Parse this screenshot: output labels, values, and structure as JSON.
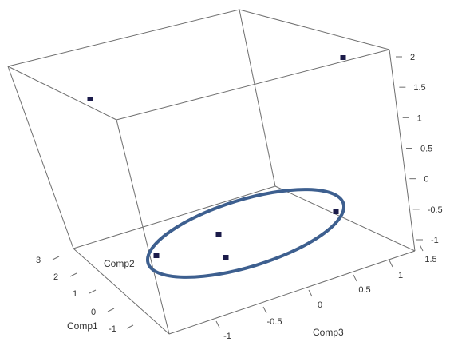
{
  "chart_data": {
    "type": "scatter",
    "title": "",
    "axes": {
      "z": {
        "ticks": [
          "-1",
          "-0.5",
          "0",
          "0.5",
          "1",
          "1.5",
          "2"
        ]
      },
      "comp3": {
        "label": "Comp3",
        "ticks": [
          "-1",
          "-0.5",
          "0",
          "0.5",
          "1",
          "1.5"
        ]
      },
      "comp2": {
        "label": "Comp2"
      },
      "comp1": {
        "label": "Comp1",
        "ticks": [
          "-1",
          "0",
          "1",
          "2",
          "3"
        ]
      }
    },
    "points_count": 6,
    "annotation": {
      "shape": "ellipse",
      "color": "#3d5f8f"
    },
    "colors": {
      "points": "#1b1b4a",
      "box": "#6e6e6e",
      "ellipse": "#3d5f8f"
    }
  }
}
